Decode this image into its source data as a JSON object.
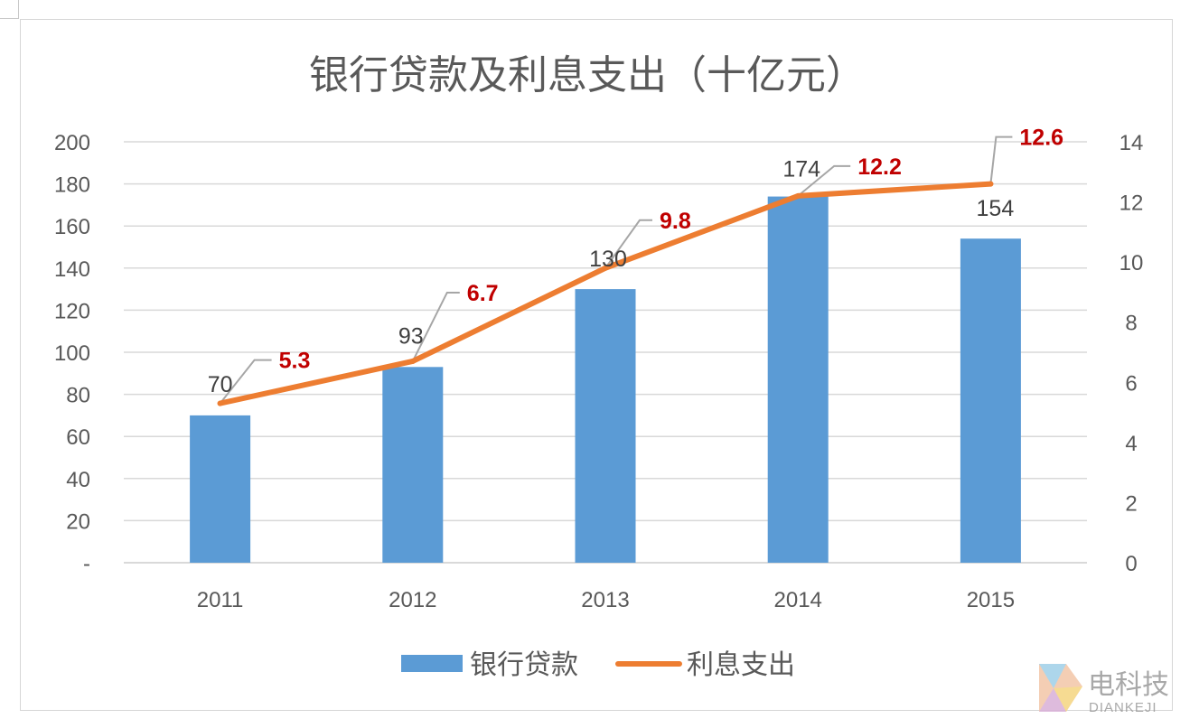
{
  "chart_data": {
    "type": "bar",
    "title": "银行贷款及利息支出（十亿元）",
    "categories": [
      "2011",
      "2012",
      "2013",
      "2014",
      "2015"
    ],
    "series": [
      {
        "name": "银行贷款",
        "type": "bar",
        "axis": "left",
        "values": [
          70,
          93,
          130,
          174,
          154
        ]
      },
      {
        "name": "利息支出",
        "type": "line",
        "axis": "right",
        "values": [
          5.3,
          6.7,
          9.8,
          12.2,
          12.6
        ]
      }
    ],
    "y_left": {
      "range": [
        0,
        200
      ],
      "ticks": [
        "-",
        "20",
        "40",
        "60",
        "80",
        "100",
        "120",
        "140",
        "160",
        "180",
        "200"
      ]
    },
    "y_right": {
      "range": [
        0,
        14
      ],
      "ticks": [
        "0",
        "2",
        "4",
        "6",
        "8",
        "10",
        "12",
        "14"
      ]
    },
    "bar_labels": [
      "70",
      "93",
      "130",
      "174",
      "154"
    ],
    "line_labels": [
      "5.3",
      "6.7",
      "9.8",
      "12.2",
      "12.6"
    ],
    "grid": true,
    "legend_position": "bottom",
    "colors": {
      "bar": "#5b9bd5",
      "line": "#ed7d31",
      "line_label": "#c00000",
      "leader": "#a6a6a6",
      "grid": "#d9d9d9"
    }
  },
  "watermark": {
    "cn": "电科技",
    "en": "DIANKEJI"
  }
}
